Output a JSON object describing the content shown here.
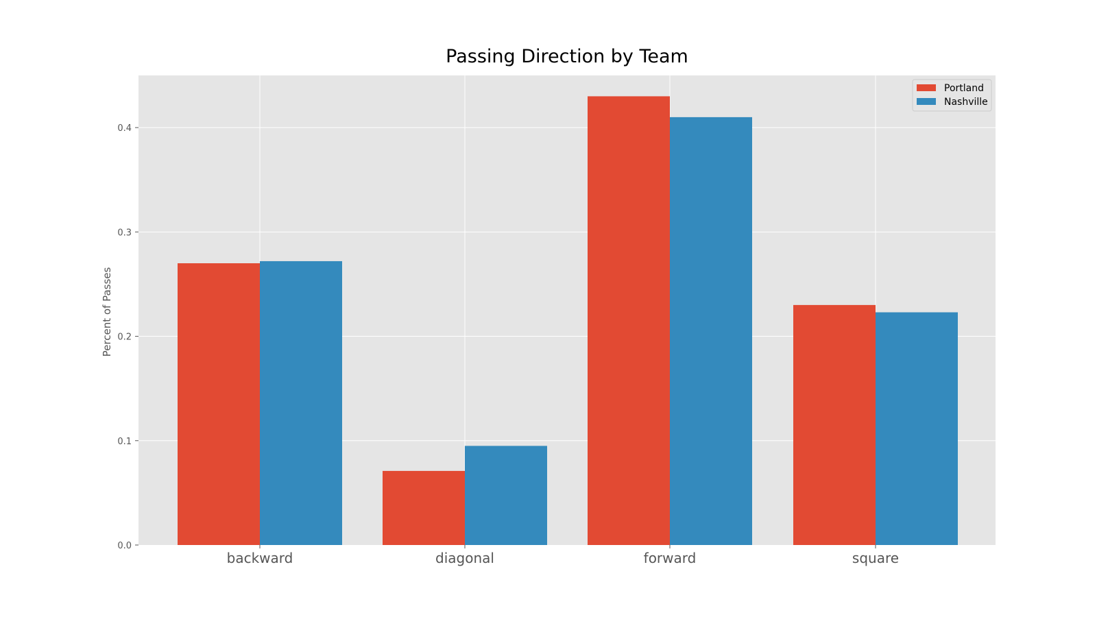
{
  "chart_data": {
    "type": "bar",
    "title": "Passing Direction by Team",
    "xlabel": "",
    "ylabel": "Percent of Passes",
    "categories": [
      "backward",
      "diagonal",
      "forward",
      "square"
    ],
    "series": [
      {
        "name": "Portland",
        "color": "#E24A33",
        "values": [
          0.27,
          0.071,
          0.43,
          0.23
        ]
      },
      {
        "name": "Nashville",
        "color": "#348ABD",
        "values": [
          0.272,
          0.095,
          0.41,
          0.223
        ]
      }
    ],
    "ylim": [
      0,
      0.45
    ],
    "yticks": [
      "0.0",
      "0.1",
      "0.2",
      "0.3",
      "0.4"
    ],
    "grid": true,
    "legend_position": "top-right",
    "background_color": "#E5E5E5"
  }
}
